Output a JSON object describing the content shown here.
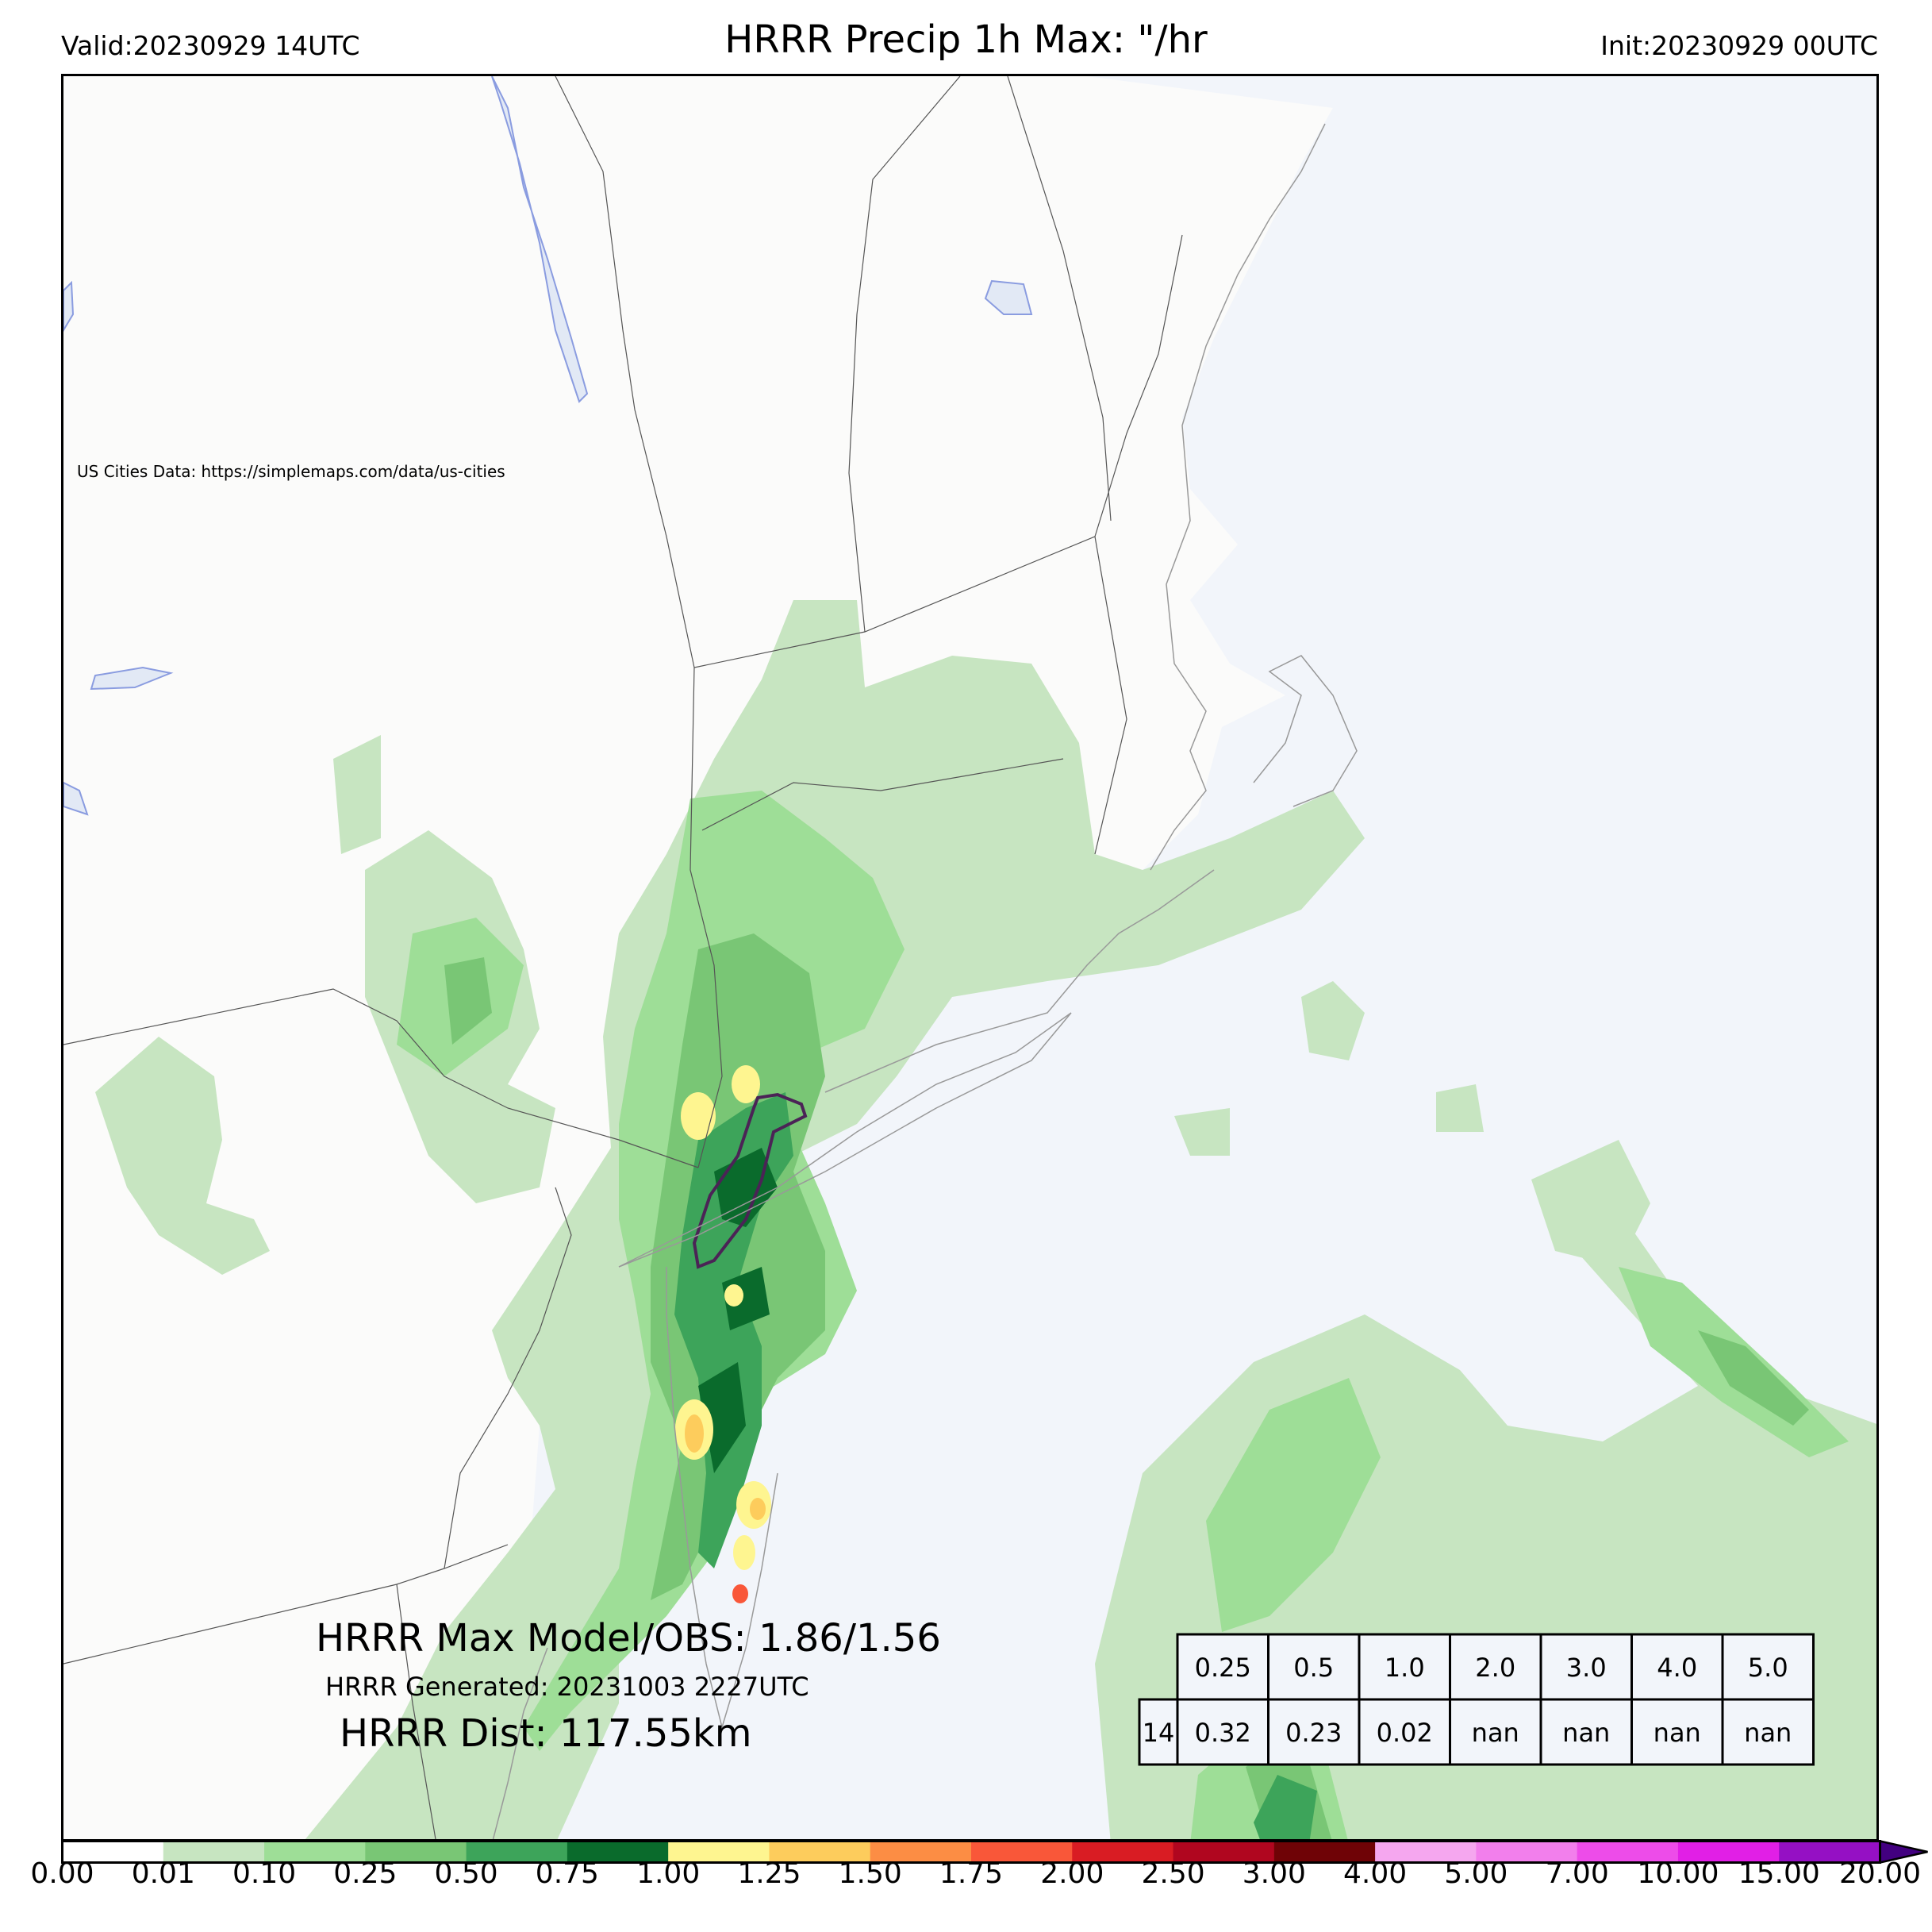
{
  "header": {
    "title": "HRRR Precip 1h Max: \"/hr",
    "valid": "Valid:20230929 14UTC",
    "init": "Init:20230929 00UTC"
  },
  "map": {
    "attribution": "US Cities Data: https://simplemaps.com/data/us-cities",
    "land_color": "#fbfbfa",
    "ocean_color": "#f2f5fa",
    "region": "US Northeast: New York, New England, New Jersey, Pennsylvania",
    "max_model_obs": "HRRR Max Model/OBS: 1.86/1.56",
    "generated": "HRRR Generated: 20231003 2227UTC",
    "distance": "HRRR Dist: 117.55km"
  },
  "stats_table": {
    "thresholds": [
      "0.25",
      "0.5",
      "1.0",
      "2.0",
      "3.0",
      "4.0",
      "5.0"
    ],
    "row_label": "14",
    "values": [
      "0.32",
      "0.23",
      "0.02",
      "nan",
      "nan",
      "nan",
      "nan"
    ]
  },
  "colorbar": {
    "labels": [
      "0.00",
      "0.01",
      "0.10",
      "0.25",
      "0.50",
      "0.75",
      "1.00",
      "1.25",
      "1.50",
      "1.75",
      "2.00",
      "2.50",
      "3.00",
      "4.00",
      "5.00",
      "7.00",
      "10.00",
      "15.00",
      "20.00"
    ],
    "colors": [
      "#ffffff",
      "#c7e5c1",
      "#9ede97",
      "#79c675",
      "#3da45a",
      "#0a6b2c",
      "#fef590",
      "#fdcc5c",
      "#fc8d44",
      "#f95739",
      "#d91c23",
      "#b0061f",
      "#6f0306",
      "#f5a7ef",
      "#f27fec",
      "#ed4ce9",
      "#e11fe6",
      "#9510c4"
    ],
    "extend_color": "#420080"
  },
  "legend_colors": {
    "precip_light": "#c7e5c1",
    "precip_mid": "#9ede97",
    "precip_med": "#79c675",
    "precip_heavy": "#3da45a",
    "precip_vheavy": "#0a6b2c",
    "precip_yellow": "#fef590",
    "precip_orange": "#fdcc5c",
    "obs_contour": "#4b2356"
  }
}
